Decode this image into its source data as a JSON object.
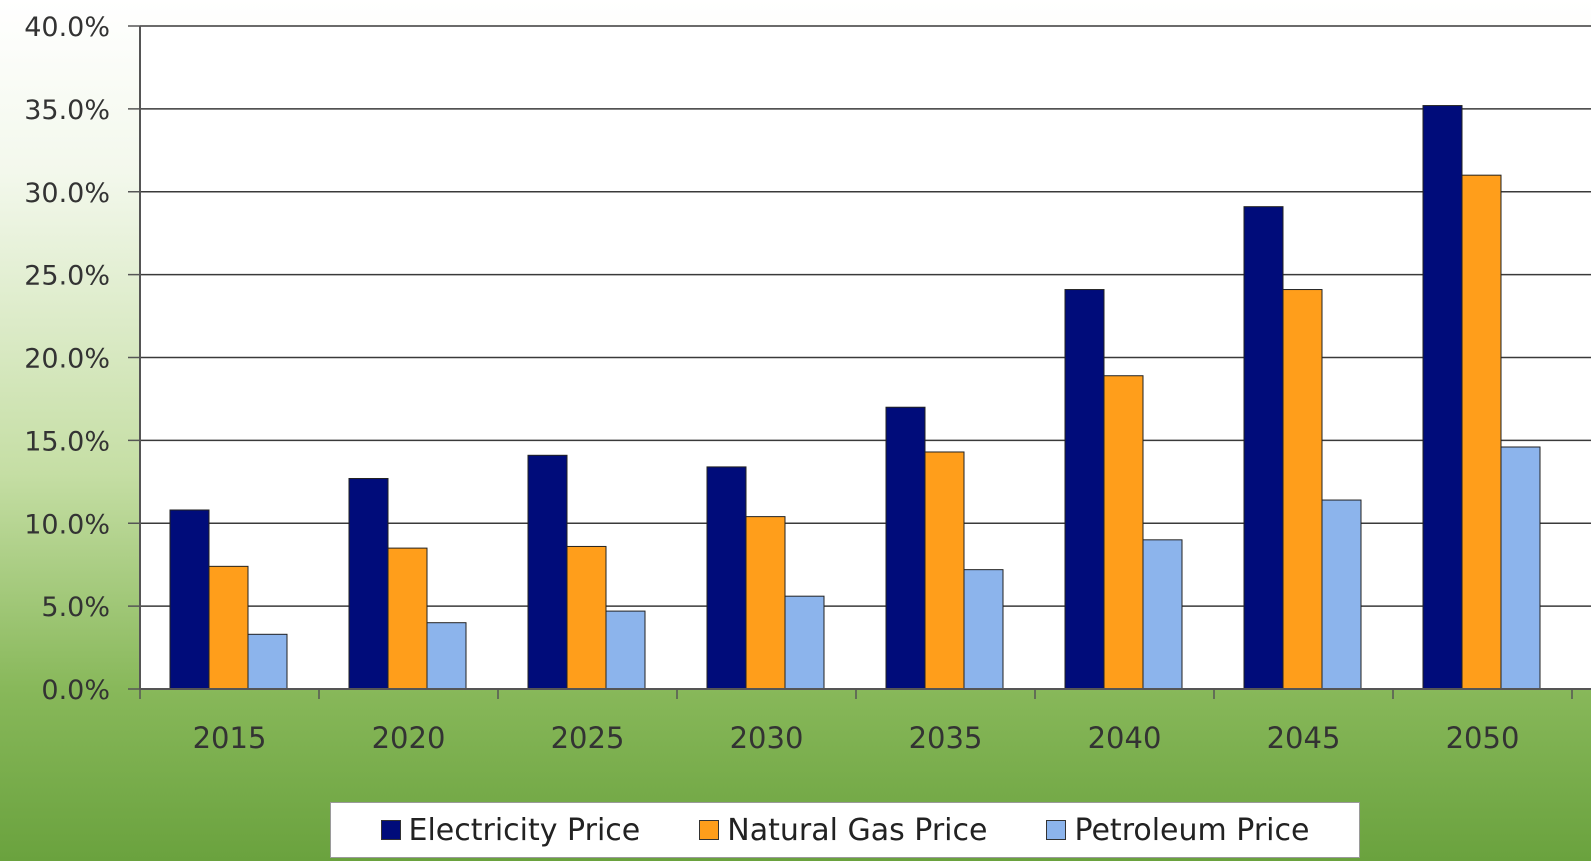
{
  "chart_data": {
    "type": "bar",
    "categories": [
      "2015",
      "2020",
      "2025",
      "2030",
      "2035",
      "2040",
      "2045",
      "2050"
    ],
    "series": [
      {
        "name": "Electricity Price",
        "color": "#000c7a",
        "values": [
          10.8,
          12.7,
          14.1,
          13.4,
          17.0,
          24.1,
          29.1,
          35.2
        ]
      },
      {
        "name": "Natural Gas Price",
        "color": "#ff9e1b",
        "values": [
          7.4,
          8.5,
          8.6,
          10.4,
          14.3,
          18.9,
          24.1,
          31.0
        ]
      },
      {
        "name": "Petroleum Price",
        "color": "#8cb4ec",
        "values": [
          3.3,
          4.0,
          4.7,
          5.6,
          7.2,
          9.0,
          11.4,
          14.6
        ]
      }
    ],
    "ylim": [
      0,
      40
    ],
    "yticks": [
      "0.0%",
      "5.0%",
      "10.0%",
      "15.0%",
      "20.0%",
      "25.0%",
      "30.0%",
      "35.0%",
      "40.0%"
    ],
    "grid": true,
    "legend_position": "bottom"
  }
}
